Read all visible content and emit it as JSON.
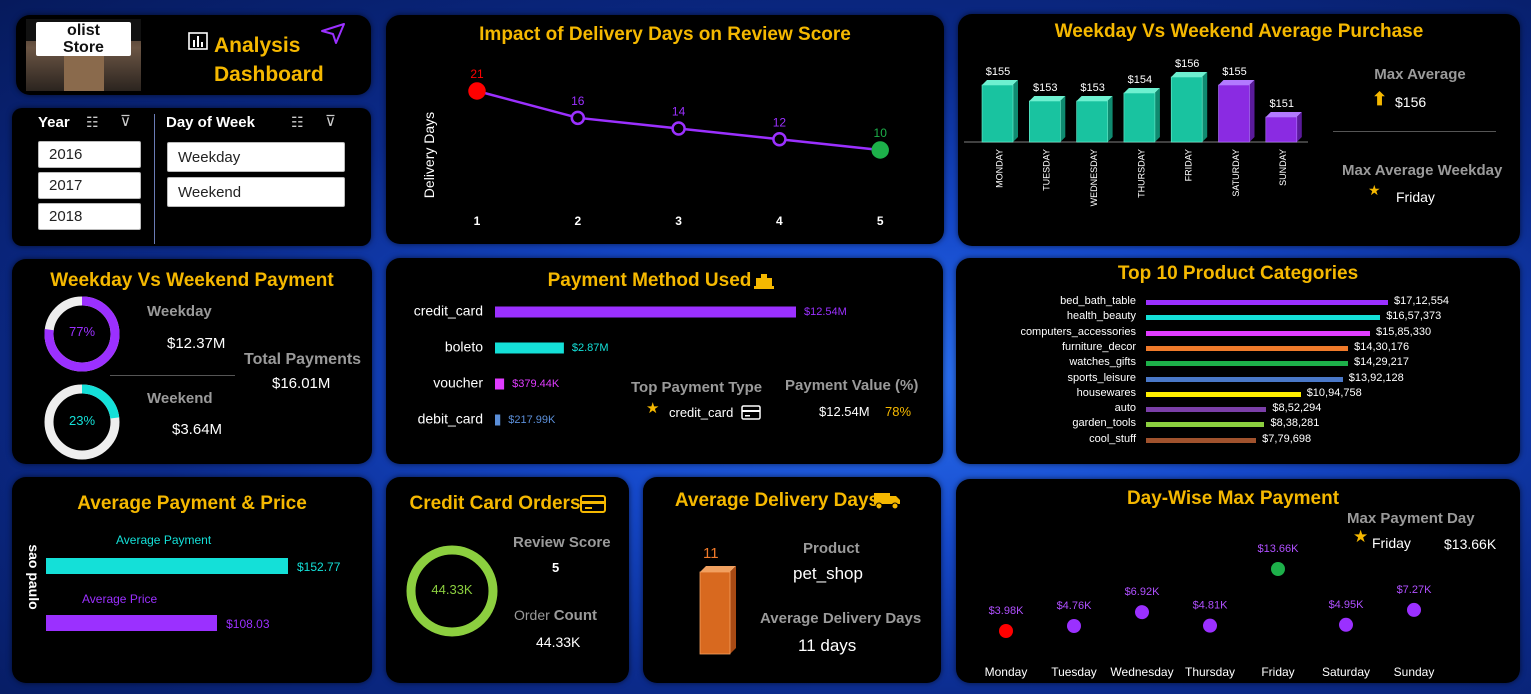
{
  "logo": {
    "line1": "olist",
    "line2": "Store"
  },
  "dashboard_title": {
    "line1": "Analysis",
    "line2": "Dashboard"
  },
  "filters": {
    "year_label": "Year",
    "years": [
      "2016",
      "2017",
      "2018"
    ],
    "dow_label": "Day of Week",
    "days": [
      "Weekday",
      "Weekend"
    ]
  },
  "delivery_review": {
    "title": "Impact of Delivery Days on Review Score",
    "ylabel": "Delivery Days",
    "chart_data": {
      "type": "line",
      "x": [
        1,
        2,
        3,
        4,
        5
      ],
      "y": [
        21,
        16,
        14,
        12,
        10
      ],
      "ylabel": "Delivery Days"
    },
    "colors": {
      "line": "#9b30ff",
      "max": "#ff0000",
      "min": "#1db04a"
    }
  },
  "weekday_avg_purchase": {
    "title": "Weekday Vs Weekend Average Purchase",
    "chart_data": {
      "type": "bar",
      "categories": [
        "MONDAY",
        "TUESDAY",
        "WEDNESDAY",
        "THURSDAY",
        "FRIDAY",
        "SATURDAY",
        "SUNDAY"
      ],
      "values": [
        155,
        153,
        153,
        154,
        156,
        155,
        151
      ],
      "labels": [
        "$155",
        "$153",
        "$153",
        "$154",
        "$156",
        "$155",
        "$151"
      ]
    },
    "max_average_label": "Max Average",
    "max_average_value": "$156",
    "max_weekday_label": "Max Average Weekday",
    "max_weekday_value": "Friday"
  },
  "weekday_weekend_payment": {
    "title": "Weekday Vs Weekend Payment",
    "weekday_label": "Weekday",
    "weekday_pct": "77%",
    "weekday_pct_value": 0.77,
    "weekday_value": "$12.37M",
    "weekend_label": "Weekend",
    "weekend_pct": "23%",
    "weekend_pct_value": 0.23,
    "weekend_value": "$3.64M",
    "total_label": "Total Payments",
    "total_value": "$16.01M"
  },
  "payment_method": {
    "title": "Payment Method Used",
    "chart_data": {
      "type": "bar",
      "categories": [
        "credit_card",
        "boleto",
        "voucher",
        "debit_card"
      ],
      "values": [
        12.54,
        2.87,
        0.37944,
        0.21799
      ],
      "labels": [
        "$12.54M",
        "$2.87M",
        "$379.44K",
        "$217.99K"
      ],
      "colors": [
        "#9b30ff",
        "#14e0d8",
        "#e03cff",
        "#5b8fd9"
      ]
    },
    "top_type_label": "Top Payment Type",
    "top_type_value": "credit_card",
    "payment_value_label": "Payment Value (%)",
    "payment_value": "$12.54M",
    "payment_pct": "78%"
  },
  "top_categories": {
    "title": "Top 10 Product Categories",
    "chart_data": {
      "type": "bar",
      "categories": [
        "bed_bath_table",
        "health_beauty",
        "computers_accessories",
        "furniture_decor",
        "watches_gifts",
        "sports_leisure",
        "housewares",
        "auto",
        "garden_tools",
        "cool_stuff"
      ],
      "values": [
        1712554,
        1657373,
        1585330,
        1430176,
        1429217,
        1392128,
        1094758,
        852294,
        838281,
        779698
      ],
      "labels": [
        "$17,12,554",
        "$16,57,373",
        "$15,85,330",
        "$14,30,176",
        "$14,29,217",
        "$13,92,128",
        "$10,94,758",
        "$8,52,294",
        "$8,38,281",
        "$7,79,698"
      ],
      "colors": [
        "#9b30ff",
        "#14e0d8",
        "#e03cff",
        "#f07a2a",
        "#1db04a",
        "#4a78c8",
        "#ffee00",
        "#7b3fa8",
        "#8ccf3f",
        "#a0522d"
      ]
    }
  },
  "avg_payment_price": {
    "title": "Average Payment & Price",
    "city": "sao paulo",
    "chart_data": {
      "type": "bar",
      "categories": [
        "Average Payment",
        "Average Price"
      ],
      "values": [
        152.77,
        108.03
      ],
      "labels": [
        "$152.77",
        "$108.03"
      ],
      "colors": [
        "#14e0d8",
        "#9b30ff"
      ]
    }
  },
  "credit_card_orders": {
    "title": "Credit Card Orders",
    "donut_value": "44.33K",
    "review_label": "Review Score",
    "review_value": "5",
    "order_label_1": "Order",
    "order_label_2": "Count",
    "order_value": "44.33K"
  },
  "avg_delivery_days": {
    "title": "Average Delivery Days",
    "bar_value": "11",
    "product_label": "Product",
    "product_value": "pet_shop",
    "avg_label": "Average Delivery Days",
    "avg_value": "11 days"
  },
  "daywise_max_payment": {
    "title": "Day-Wise Max Payment",
    "max_day_label": "Max Payment Day",
    "max_day_value": "Friday",
    "max_day_amount": "$13.66K",
    "chart_data": {
      "type": "scatter",
      "categories": [
        "Monday",
        "Tuesday",
        "Wednesday",
        "Thursday",
        "Friday",
        "Saturday",
        "Sunday"
      ],
      "values": [
        3.98,
        4.76,
        6.92,
        4.81,
        13.66,
        4.95,
        7.27
      ],
      "labels": [
        "$3.98K",
        "$4.76K",
        "$6.92K",
        "$4.81K",
        "$13.66K",
        "$4.95K",
        "$7.27K"
      ]
    },
    "colors": {
      "point": "#9b30ff",
      "max": "#1db04a",
      "min": "#ff0000"
    }
  }
}
